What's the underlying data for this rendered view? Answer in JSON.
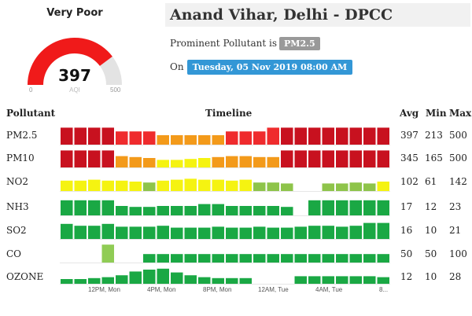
{
  "gauge": {
    "status": "Very Poor",
    "value": "397",
    "unit": "AQI",
    "min": "0",
    "max": "500",
    "fraction": 0.794,
    "color": "#f01a1a"
  },
  "header": {
    "title": "Anand Vihar, Delhi - DPCC",
    "prominent_prefix": "Prominent Pollutant is",
    "prominent_pollutant": "PM2.5",
    "on_label": "On",
    "datetime": "Tuesday, 05 Nov 2019 08:00 AM"
  },
  "table": {
    "col_pollutant": "Pollutant",
    "col_timeline": "Timeline",
    "col_avg": "Avg",
    "col_min": "Min",
    "col_max": "Max",
    "rows": [
      {
        "name": "PM2.5",
        "avg": "397",
        "min": "213",
        "max": "500"
      },
      {
        "name": "PM10",
        "avg": "345",
        "min": "165",
        "max": "500"
      },
      {
        "name": "NO2",
        "avg": "102",
        "min": "61",
        "max": "142"
      },
      {
        "name": "NH3",
        "avg": "17",
        "min": "12",
        "max": "23"
      },
      {
        "name": "SO2",
        "avg": "16",
        "min": "10",
        "max": "21"
      },
      {
        "name": "CO",
        "avg": "50",
        "min": "50",
        "max": "100"
      },
      {
        "name": "OZONE",
        "avg": "12",
        "min": "10",
        "max": "28"
      }
    ],
    "x_ticks": [
      "12PM, Mon",
      "4PM, Mon",
      "8PM, Mon",
      "12AM, Tue",
      "4AM, Tue",
      "8..."
    ]
  },
  "colors": {
    "severe": "#c8111f",
    "very_poor": "#ef2b2d",
    "poor": "#f39a1a",
    "moderate": "#f5f311",
    "satisfactory": "#8ec44a",
    "good": "#1aa844",
    "co_outlier": "#90cc55"
  },
  "chart_data": {
    "type": "bar",
    "hours": 24,
    "series": [
      {
        "name": "PM2.5",
        "levels": [
          "severe",
          "severe",
          "severe",
          "severe",
          "very_poor",
          "very_poor",
          "very_poor",
          "poor",
          "poor",
          "poor",
          "poor",
          "poor",
          "very_poor",
          "very_poor",
          "very_poor",
          "very_poor",
          "severe",
          "severe",
          "severe",
          "severe",
          "severe",
          "severe",
          "severe",
          "severe"
        ],
        "heights": [
          0.9,
          0.9,
          0.9,
          0.9,
          0.7,
          0.7,
          0.7,
          0.5,
          0.5,
          0.5,
          0.5,
          0.5,
          0.7,
          0.7,
          0.7,
          0.9,
          0.9,
          0.9,
          0.9,
          0.9,
          0.9,
          0.9,
          0.9,
          0.9
        ]
      },
      {
        "name": "PM10",
        "levels": [
          "severe",
          "severe",
          "severe",
          "severe",
          "poor",
          "poor",
          "poor",
          "moderate",
          "moderate",
          "moderate",
          "moderate",
          "poor",
          "poor",
          "poor",
          "poor",
          "poor",
          "severe",
          "severe",
          "severe",
          "severe",
          "severe",
          "severe",
          "severe",
          "severe"
        ],
        "heights": [
          0.9,
          0.9,
          0.9,
          0.9,
          0.6,
          0.55,
          0.5,
          0.4,
          0.4,
          0.45,
          0.5,
          0.55,
          0.6,
          0.6,
          0.55,
          0.55,
          0.9,
          0.9,
          0.9,
          0.9,
          0.9,
          0.9,
          0.9,
          0.9
        ]
      },
      {
        "name": "NO2",
        "levels": [
          "moderate",
          "moderate",
          "moderate",
          "moderate",
          "moderate",
          "moderate",
          "satisfactory",
          "moderate",
          "moderate",
          "moderate",
          "moderate",
          "moderate",
          "moderate",
          "moderate",
          "satisfactory",
          "satisfactory",
          "satisfactory",
          "none",
          "none",
          "satisfactory",
          "satisfactory",
          "satisfactory",
          "satisfactory",
          "moderate"
        ],
        "heights": [
          0.55,
          0.55,
          0.6,
          0.55,
          0.55,
          0.5,
          0.45,
          0.55,
          0.6,
          0.65,
          0.6,
          0.6,
          0.55,
          0.6,
          0.45,
          0.45,
          0.4,
          0,
          0,
          0.4,
          0.4,
          0.45,
          0.4,
          0.5
        ]
      },
      {
        "name": "NH3",
        "levels": [
          "good",
          "good",
          "good",
          "good",
          "good",
          "good",
          "good",
          "good",
          "good",
          "good",
          "good",
          "good",
          "good",
          "good",
          "good",
          "good",
          "good",
          "none",
          "good",
          "good",
          "good",
          "good",
          "good",
          "good"
        ],
        "heights": [
          0.8,
          0.8,
          0.8,
          0.8,
          0.5,
          0.45,
          0.45,
          0.5,
          0.5,
          0.5,
          0.6,
          0.6,
          0.5,
          0.5,
          0.5,
          0.5,
          0.45,
          0,
          0.8,
          0.8,
          0.8,
          0.8,
          0.8,
          0.8
        ]
      },
      {
        "name": "SO2",
        "levels": [
          "good",
          "good",
          "good",
          "good",
          "good",
          "good",
          "good",
          "good",
          "good",
          "good",
          "good",
          "good",
          "good",
          "good",
          "good",
          "good",
          "good",
          "good",
          "good",
          "good",
          "good",
          "good",
          "good",
          "good"
        ],
        "heights": [
          0.8,
          0.7,
          0.7,
          0.8,
          0.65,
          0.65,
          0.65,
          0.7,
          0.6,
          0.6,
          0.6,
          0.65,
          0.6,
          0.6,
          0.65,
          0.6,
          0.6,
          0.65,
          0.7,
          0.7,
          0.65,
          0.7,
          0.85,
          0.85
        ]
      },
      {
        "name": "CO",
        "levels": [
          "none",
          "none",
          "none",
          "co_outlier",
          "none",
          "none",
          "good",
          "good",
          "good",
          "good",
          "good",
          "good",
          "good",
          "good",
          "good",
          "good",
          "good",
          "good",
          "good",
          "good",
          "good",
          "good",
          "good",
          "good"
        ],
        "heights": [
          0,
          0,
          0,
          0.95,
          0,
          0,
          0.45,
          0.45,
          0.45,
          0.45,
          0.45,
          0.45,
          0.45,
          0.45,
          0.45,
          0.45,
          0.45,
          0.45,
          0.45,
          0.45,
          0.45,
          0.45,
          0.45,
          0.45
        ]
      },
      {
        "name": "OZONE",
        "levels": [
          "good",
          "good",
          "good",
          "good",
          "good",
          "good",
          "good",
          "good",
          "good",
          "good",
          "good",
          "good",
          "good",
          "good",
          "none",
          "none",
          "none",
          "good",
          "good",
          "good",
          "good",
          "good",
          "good",
          "good"
        ],
        "heights": [
          0.25,
          0.25,
          0.3,
          0.35,
          0.45,
          0.65,
          0.75,
          0.8,
          0.6,
          0.45,
          0.35,
          0.3,
          0.3,
          0.3,
          0,
          0,
          0,
          0.4,
          0.4,
          0.4,
          0.4,
          0.4,
          0.4,
          0.35
        ]
      }
    ]
  }
}
